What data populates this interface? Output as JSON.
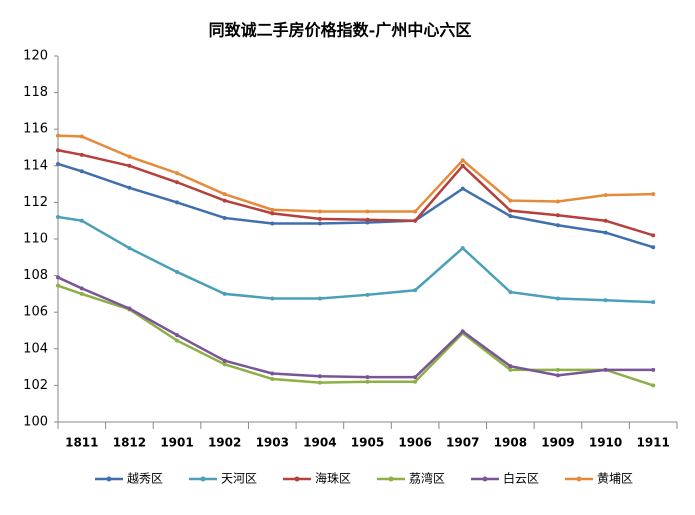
{
  "chart_data": {
    "type": "line",
    "title": "同致诚二手房价格指数-广州中心六区",
    "categories": [
      null,
      "1811",
      "1812",
      "1901",
      "1902",
      "1903",
      "1904",
      "1905",
      "1906",
      "1907",
      "1908",
      "1909",
      "1910",
      "1911"
    ],
    "series": [
      {
        "name": "越秀区",
        "color": "#3f6fae",
        "values": [
          114.1,
          113.7,
          112.8,
          112.0,
          111.15,
          110.85,
          110.85,
          110.9,
          111.0,
          112.75,
          111.25,
          110.75,
          110.35,
          109.55
        ]
      },
      {
        "name": "天河区",
        "color": "#4aa0b8",
        "values": [
          111.2,
          111.0,
          109.5,
          108.2,
          107.0,
          106.75,
          106.75,
          106.95,
          107.2,
          109.5,
          107.1,
          106.75,
          106.65,
          106.55
        ]
      },
      {
        "name": "海珠区",
        "color": "#b5403c",
        "values": [
          114.85,
          114.6,
          114.0,
          113.1,
          112.1,
          111.4,
          111.1,
          111.05,
          111.0,
          114.0,
          111.55,
          111.3,
          111.0,
          110.2
        ]
      },
      {
        "name": "荔湾区",
        "color": "#8db045",
        "values": [
          107.45,
          107.0,
          106.15,
          104.45,
          103.15,
          102.35,
          102.15,
          102.2,
          102.2,
          104.85,
          102.85,
          102.85,
          102.85,
          102.0
        ]
      },
      {
        "name": "白云区",
        "color": "#7a5499",
        "values": [
          107.9,
          107.3,
          106.2,
          104.75,
          103.35,
          102.65,
          102.5,
          102.45,
          102.45,
          104.95,
          103.05,
          102.55,
          102.85,
          102.85
        ]
      },
      {
        "name": "黄埔区",
        "color": "#e58a3a",
        "values": [
          115.65,
          115.6,
          114.5,
          113.6,
          112.45,
          111.6,
          111.5,
          111.5,
          111.5,
          114.3,
          112.1,
          112.05,
          112.4,
          112.45
        ]
      }
    ],
    "ylim": [
      100,
      120
    ],
    "yticks": [
      100,
      102,
      104,
      106,
      108,
      110,
      112,
      114,
      116,
      118,
      120
    ],
    "grid": false,
    "legend": "bottom"
  }
}
